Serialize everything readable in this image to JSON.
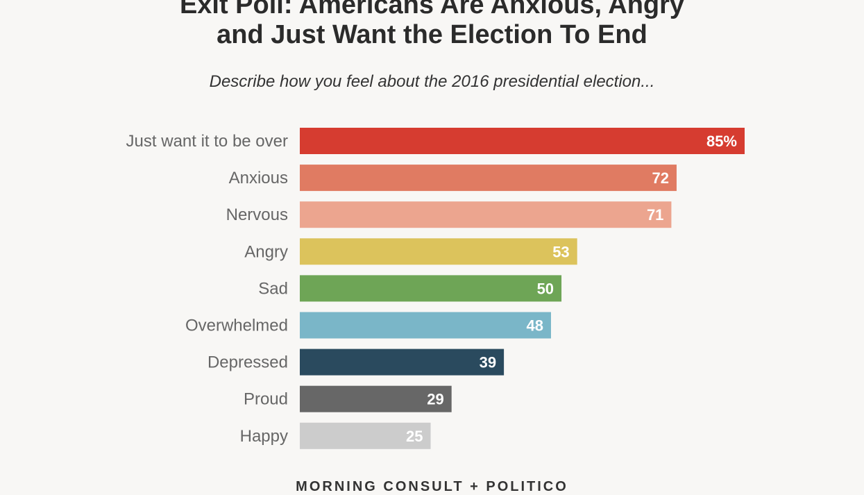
{
  "title_line1": "Exit Poll: Americans Are Anxious, Angry",
  "title_line2": "and Just Want the Election To End",
  "subtitle": "Describe how you feel about the 2016 presidential election...",
  "footer_logo": "MORNING CONSULT + POLITICO",
  "chart_data": {
    "type": "bar",
    "orientation": "horizontal",
    "title": "Exit Poll: Americans Are Anxious, Angry and Just Want the Election To End",
    "subtitle": "Describe how you feel about the 2016 presidential election...",
    "categories": [
      "Just want it to be over",
      "Anxious",
      "Nervous",
      "Angry",
      "Sad",
      "Overwhelmed",
      "Depressed",
      "Proud",
      "Happy"
    ],
    "values": [
      85,
      72,
      71,
      53,
      50,
      48,
      39,
      29,
      25
    ],
    "value_labels": [
      "85%",
      "72",
      "71",
      "53",
      "50",
      "48",
      "39",
      "29",
      "25"
    ],
    "colors": [
      "#d63c30",
      "#e07b62",
      "#eca58f",
      "#dcc35c",
      "#6ea556",
      "#7ab6c8",
      "#2a4a5e",
      "#676767",
      "#cccccc"
    ],
    "xlim": [
      0,
      85
    ],
    "grid": false,
    "xlabel": "",
    "ylabel": ""
  }
}
